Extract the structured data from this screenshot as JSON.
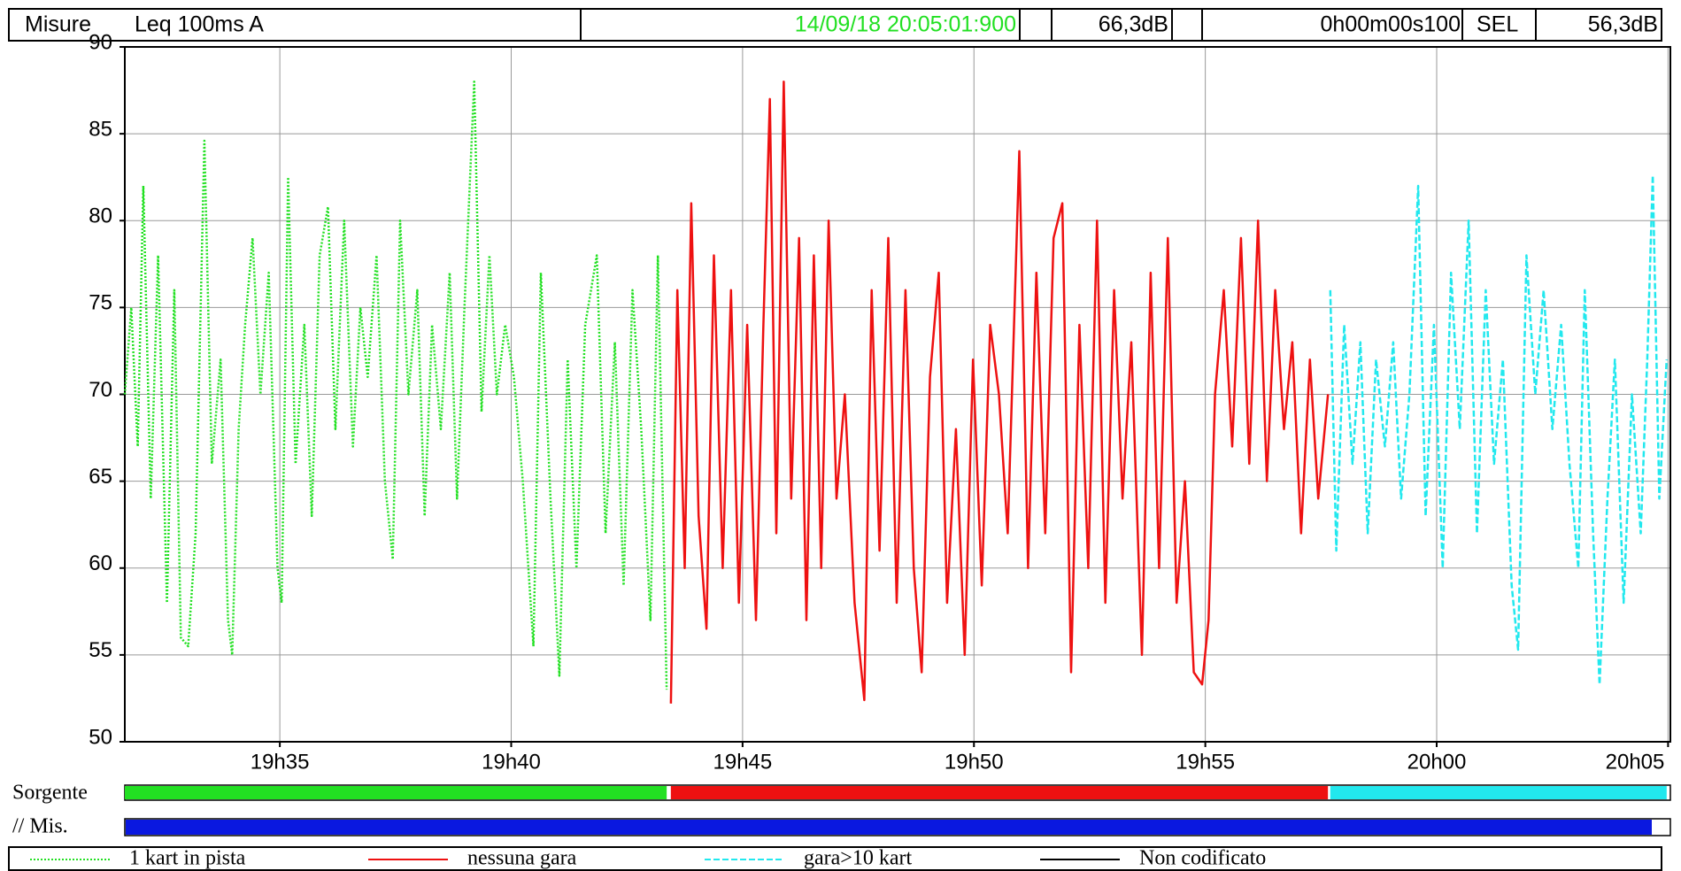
{
  "header": {
    "measure": "Misure",
    "mode": "Leq 100ms A",
    "datetime": "14/09/18 20:05:01:900",
    "datetime_color": "#22e022",
    "level": "66,3dB",
    "duration": "0h00m00s100",
    "sel_label": "SEL",
    "sel": "56,3dB"
  },
  "bands": {
    "source_label": "Sorgente",
    "measure_label": "// Mis.",
    "measure_color": "#0a18e0"
  },
  "chart_data": {
    "type": "line",
    "xlim": [
      1171.65,
      1205.05
    ],
    "xticks": [
      {
        "value": 1175,
        "label": "19h35"
      },
      {
        "value": 1180,
        "label": "19h40"
      },
      {
        "value": 1185,
        "label": "19h45"
      },
      {
        "value": 1190,
        "label": "19h50"
      },
      {
        "value": 1195,
        "label": "19h55"
      },
      {
        "value": 1200,
        "label": "20h00"
      },
      {
        "value": 1205,
        "label": "20h05"
      }
    ],
    "ylim": [
      50,
      90
    ],
    "yticks": [
      50,
      55,
      60,
      65,
      70,
      75,
      80,
      85,
      90
    ],
    "grid": true,
    "series": [
      {
        "name": "1 kart in pista",
        "color": "#22e022",
        "style": "dotted",
        "x": [
          1171.65,
          1171.79,
          1171.93,
          1172.05,
          1172.21,
          1172.37,
          1172.56,
          1172.72,
          1172.86,
          1173.02,
          1173.18,
          1173.37,
          1173.53,
          1173.72,
          1173.88,
          1173.97,
          1174.11,
          1174.25,
          1174.41,
          1174.58,
          1174.76,
          1174.95,
          1175.04,
          1175.18,
          1175.34,
          1175.53,
          1175.69,
          1175.86,
          1176.04,
          1176.2,
          1176.39,
          1176.58,
          1176.74,
          1176.9,
          1177.09,
          1177.27,
          1177.44,
          1177.6,
          1177.78,
          1177.97,
          1178.13,
          1178.29,
          1178.48,
          1178.67,
          1178.83,
          1178.99,
          1179.2,
          1179.36,
          1179.53,
          1179.69,
          1179.87,
          1180.06,
          1180.25,
          1180.48,
          1180.64,
          1180.85,
          1181.04,
          1181.22,
          1181.41,
          1181.6,
          1181.85,
          1182.04,
          1182.24,
          1182.43,
          1182.62,
          1182.81,
          1183.01,
          1183.17,
          1183.36
        ],
        "values": [
          70,
          75,
          67,
          82,
          64,
          78,
          58,
          76,
          56,
          55.5,
          62,
          84.6,
          66,
          72,
          57,
          55,
          68,
          74,
          79,
          70,
          77,
          60,
          58,
          82.5,
          66,
          74,
          63,
          78,
          80.8,
          68,
          80,
          67,
          75,
          71,
          78,
          65,
          60.5,
          80,
          70,
          76,
          63,
          74,
          68,
          77,
          64,
          75,
          88,
          69,
          78,
          70,
          74,
          71,
          65,
          55.5,
          77,
          64,
          53.8,
          72,
          60,
          74,
          78,
          62,
          73,
          59,
          76,
          68,
          57,
          78,
          53
        ]
      },
      {
        "name": "nessuna gara",
        "color": "#ee1111",
        "style": "solid",
        "x": [
          1183.45,
          1183.59,
          1183.75,
          1183.89,
          1184.05,
          1184.22,
          1184.38,
          1184.57,
          1184.75,
          1184.92,
          1185.1,
          1185.29,
          1185.45,
          1185.59,
          1185.73,
          1185.89,
          1186.05,
          1186.22,
          1186.38,
          1186.54,
          1186.7,
          1186.86,
          1187.03,
          1187.21,
          1187.42,
          1187.63,
          1187.79,
          1187.96,
          1188.15,
          1188.33,
          1188.52,
          1188.7,
          1188.87,
          1189.05,
          1189.24,
          1189.42,
          1189.61,
          1189.8,
          1189.98,
          1190.17,
          1190.35,
          1190.54,
          1190.73,
          1190.98,
          1191.17,
          1191.35,
          1191.54,
          1191.72,
          1191.91,
          1192.1,
          1192.28,
          1192.47,
          1192.66,
          1192.84,
          1193.03,
          1193.21,
          1193.4,
          1193.63,
          1193.82,
          1194.0,
          1194.19,
          1194.38,
          1194.56,
          1194.75,
          1194.93,
          1195.07,
          1195.21,
          1195.4,
          1195.58,
          1195.77,
          1195.95,
          1196.14,
          1196.33,
          1196.51,
          1196.7,
          1196.88,
          1197.07,
          1197.26,
          1197.44,
          1197.65
        ],
        "values": [
          52.2,
          76,
          60,
          81,
          63,
          56.5,
          78,
          60,
          76,
          58,
          74,
          57,
          74,
          87,
          62,
          88,
          64,
          79,
          57,
          78,
          60,
          80,
          64,
          70,
          58,
          52.4,
          76,
          61,
          79,
          58,
          76,
          60,
          54,
          71,
          77,
          58,
          68,
          55,
          72,
          59,
          74,
          70,
          62,
          84,
          60,
          77,
          62,
          79,
          81,
          54,
          74,
          60,
          80,
          58,
          76,
          64,
          73,
          55,
          77,
          60,
          79,
          58,
          65,
          54,
          53.3,
          57,
          70,
          76,
          67,
          79,
          66,
          80,
          65,
          76,
          68,
          73,
          62,
          72,
          64,
          70
        ]
      },
      {
        "name": "gara>10 kart",
        "color": "#22e8ee",
        "style": "dashed",
        "x": [
          1197.7,
          1197.83,
          1198.0,
          1198.18,
          1198.35,
          1198.51,
          1198.69,
          1198.88,
          1199.06,
          1199.23,
          1199.41,
          1199.6,
          1199.76,
          1199.94,
          1200.13,
          1200.31,
          1200.5,
          1200.69,
          1200.87,
          1201.06,
          1201.24,
          1201.43,
          1201.62,
          1201.76,
          1201.94,
          1202.13,
          1202.31,
          1202.5,
          1202.69,
          1202.87,
          1203.06,
          1203.2,
          1203.38,
          1203.52,
          1203.69,
          1203.85,
          1204.04,
          1204.22,
          1204.41,
          1204.55,
          1204.67,
          1204.81,
          1204.97
        ],
        "values": [
          76,
          61,
          74,
          66,
          73,
          62,
          72,
          67,
          73,
          64,
          70,
          82,
          63,
          74,
          60,
          77,
          68,
          80,
          62,
          76,
          66,
          72,
          59,
          55.3,
          78,
          70,
          76,
          68,
          74,
          66,
          60,
          76,
          62,
          53.3,
          64,
          72,
          58,
          70,
          62,
          72,
          82.6,
          64,
          72
        ]
      },
      {
        "name": "Non codificato",
        "color": "#000000",
        "style": "solid",
        "x": [],
        "values": []
      }
    ]
  }
}
